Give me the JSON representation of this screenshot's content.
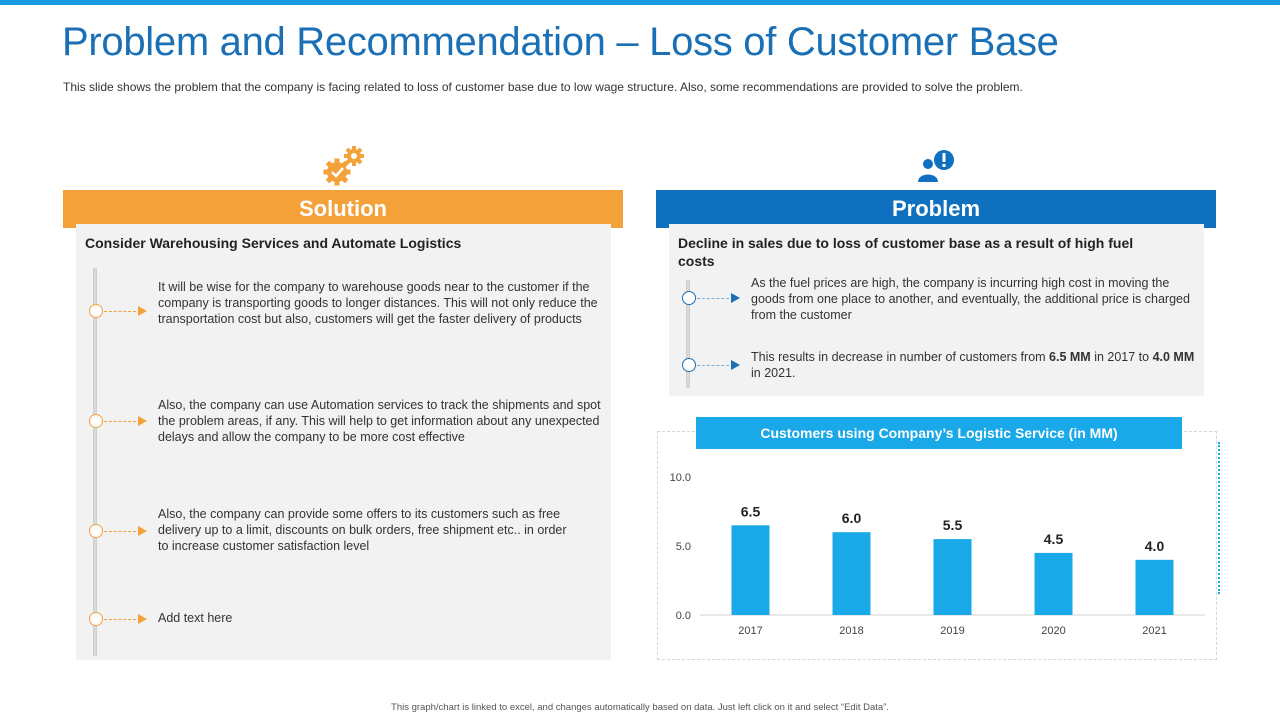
{
  "slide": {
    "title": "Problem and Recommendation – Loss of Customer Base",
    "subtitle": "This slide shows the problem that the company is facing related to loss of customer base due to low wage structure. Also, some recommendations  are provided  to solve the problem.",
    "footer": "This graph/chart is linked to excel, and changes automatically based on data. Just left click on it and select “Edit Data”."
  },
  "solution": {
    "header": "Solution",
    "icon": "gears-icon",
    "heading": "Consider Warehousing Services and Automate Logistics",
    "items": [
      "It will be wise for the company to warehouse  goods near to the customer if the company is transporting goods to longer distances. This will not only reduce the transportation  cost but also, customers will get the faster delivery  of products",
      "Also, the company can use Automation services  to track the shipments and spot the problem areas,  if any. This will help to get information  about any unexpected delays and allow the company to be more cost effective",
      "Also, the company can provide  some offers to its customers such as free delivery  up to a limit, discounts on bulk orders, free  shipment etc.. in order to increase customer satisfaction level",
      "Add text here"
    ]
  },
  "problem": {
    "header": "Problem",
    "icon": "user-alert-icon",
    "heading": "Decline in sales due to loss of customer base as a result of high fuel costs",
    "item1": "As the fuel prices are high, the company is incurring  high cost in moving the goods from one place to another, and eventually,  the additional  price is charged from the customer",
    "item2": {
      "pre": "This results in decrease in number of customers from ",
      "v1": "6.5 MM",
      "mid": " in 2017 to ",
      "v2": "4.0 MM",
      "post": " in 2021."
    }
  },
  "colors": {
    "accent_orange": "#f5a13a",
    "accent_blue": "#1070c0",
    "bar_blue": "#19a8e8",
    "title_blue": "#1a6fb5"
  },
  "chart_data": {
    "type": "bar",
    "title": "Customers using Company’s Logistic Service (in MM)",
    "categories": [
      "2017",
      "2018",
      "2019",
      "2020",
      "2021"
    ],
    "values": [
      6.5,
      6.0,
      5.5,
      4.5,
      4.0
    ],
    "value_labels": [
      "6.5",
      "6.0",
      "5.5",
      "4.5",
      "4.0"
    ],
    "yticks": [
      "0.0",
      "5.0",
      "10.0"
    ],
    "ylim": [
      0,
      10
    ],
    "grid": false,
    "legend": "none"
  }
}
